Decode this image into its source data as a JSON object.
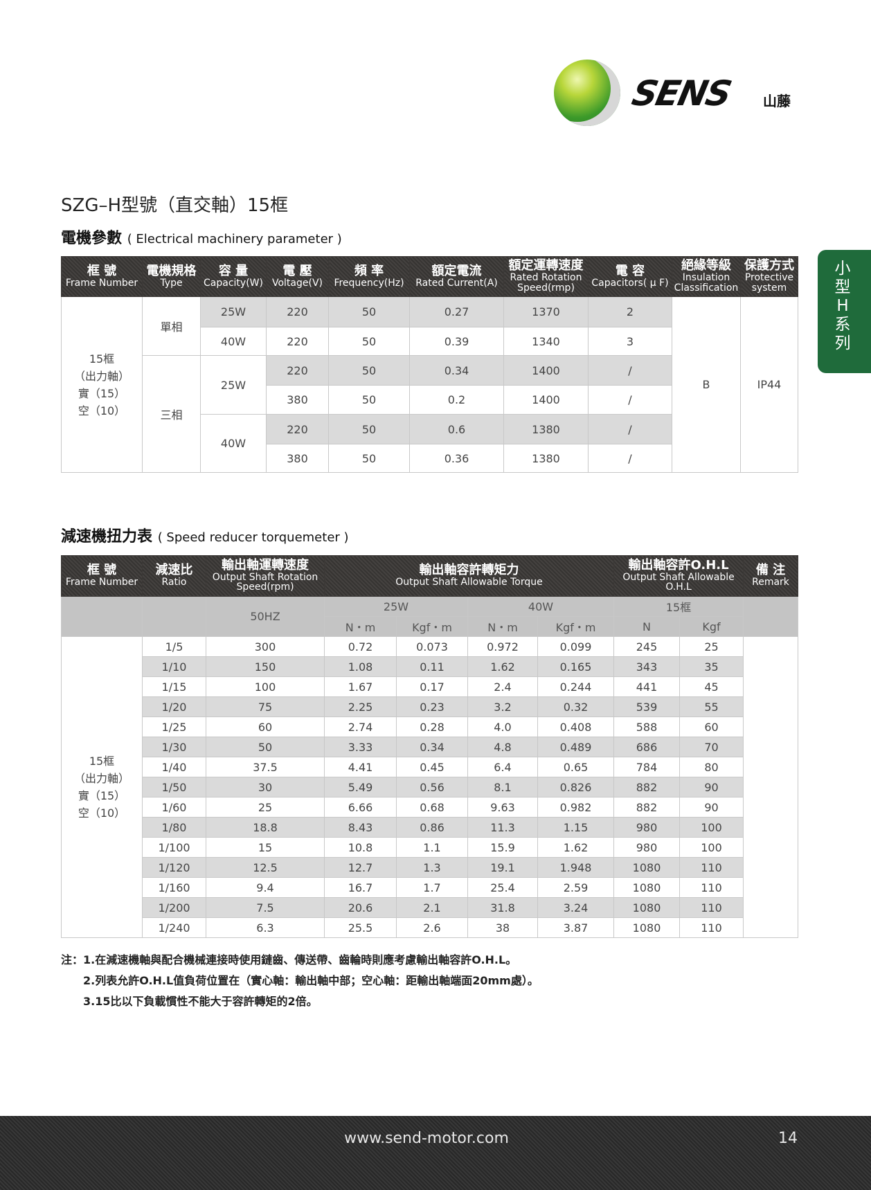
{
  "logo": {
    "brand": "SENS",
    "brand_cn": "山藤"
  },
  "title": "SZG–H型號（直交軸）15框",
  "side_tab": "小型H系列",
  "section1": {
    "title_cn": "電機參數",
    "title_en": "( Electrical machinery parameter )"
  },
  "table1": {
    "headers": [
      {
        "cn": "框 號",
        "en": "Frame Number"
      },
      {
        "cn": "電機規格",
        "en": "Type"
      },
      {
        "cn": "容 量",
        "en": "Capacity(W)"
      },
      {
        "cn": "電 壓",
        "en": "Voltage(V)"
      },
      {
        "cn": "頻 率",
        "en": "Frequency(Hz)"
      },
      {
        "cn": "額定電流",
        "en": "Rated Current(A)"
      },
      {
        "cn": "額定運轉速度",
        "en": "Rated Rotation Speed(rmp)"
      },
      {
        "cn": "電 容",
        "en": "Capacitors( μ F)"
      },
      {
        "cn": "絕緣等級",
        "en": "Insulation Classification"
      },
      {
        "cn": "保護方式",
        "en": "Protective system"
      }
    ],
    "frame": [
      "15框",
      "（出力軸）",
      "實（15）",
      "空（10）"
    ],
    "type_single": "單相",
    "type_three": "三相",
    "insulation": "B",
    "protection": "IP44",
    "rows": [
      {
        "capacity": "25W",
        "voltage": "220",
        "freq": "50",
        "current": "0.27",
        "speed": "1370",
        "cap": "2"
      },
      {
        "capacity": "40W",
        "voltage": "220",
        "freq": "50",
        "current": "0.39",
        "speed": "1340",
        "cap": "3"
      },
      {
        "capacity": "25W",
        "voltage": "220",
        "freq": "50",
        "current": "0.34",
        "speed": "1400",
        "cap": "/"
      },
      {
        "capacity": "",
        "voltage": "380",
        "freq": "50",
        "current": "0.2",
        "speed": "1400",
        "cap": "/"
      },
      {
        "capacity": "40W",
        "voltage": "220",
        "freq": "50",
        "current": "0.6",
        "speed": "1380",
        "cap": "/"
      },
      {
        "capacity": "",
        "voltage": "380",
        "freq": "50",
        "current": "0.36",
        "speed": "1380",
        "cap": "/"
      }
    ]
  },
  "section2": {
    "title_cn": "減速機扭力表",
    "title_en": "( Speed reducer torquemeter )"
  },
  "table2": {
    "headers": {
      "frame": {
        "cn": "框 號",
        "en": "Frame Number"
      },
      "ratio": {
        "cn": "減速比",
        "en": "Ratio"
      },
      "speed": {
        "cn": "輸出軸運轉速度",
        "en": "Output Shaft Rotation Speed(rpm)"
      },
      "torque": {
        "cn": "輸出軸容許轉矩力",
        "en": "Output Shaft Allowable Torque"
      },
      "ohl": {
        "cn": "輸出軸容許O.H.L",
        "en": "Output Shaft Allowable O.H.L"
      },
      "remark": {
        "cn": "備 注",
        "en": "Remark"
      }
    },
    "sub": {
      "hz": "50HZ",
      "w25": "25W",
      "w40": "40W",
      "frame15": "15框",
      "nm1": "N・m",
      "kgfm1": "Kgf・m",
      "nm2": "N・m",
      "kgfm2": "Kgf・m",
      "n": "N",
      "kgf": "Kgf"
    },
    "frame": [
      "15框",
      "（出力軸）",
      "實（15）",
      "空（10）"
    ],
    "rows": [
      [
        "1/5",
        "300",
        "0.72",
        "0.073",
        "0.972",
        "0.099",
        "245",
        "25"
      ],
      [
        "1/10",
        "150",
        "1.08",
        "0.11",
        "1.62",
        "0.165",
        "343",
        "35"
      ],
      [
        "1/15",
        "100",
        "1.67",
        "0.17",
        "2.4",
        "0.244",
        "441",
        "45"
      ],
      [
        "1/20",
        "75",
        "2.25",
        "0.23",
        "3.2",
        "0.32",
        "539",
        "55"
      ],
      [
        "1/25",
        "60",
        "2.74",
        "0.28",
        "4.0",
        "0.408",
        "588",
        "60"
      ],
      [
        "1/30",
        "50",
        "3.33",
        "0.34",
        "4.8",
        "0.489",
        "686",
        "70"
      ],
      [
        "1/40",
        "37.5",
        "4.41",
        "0.45",
        "6.4",
        "0.65",
        "784",
        "80"
      ],
      [
        "1/50",
        "30",
        "5.49",
        "0.56",
        "8.1",
        "0.826",
        "882",
        "90"
      ],
      [
        "1/60",
        "25",
        "6.66",
        "0.68",
        "9.63",
        "0.982",
        "882",
        "90"
      ],
      [
        "1/80",
        "18.8",
        "8.43",
        "0.86",
        "11.3",
        "1.15",
        "980",
        "100"
      ],
      [
        "1/100",
        "15",
        "10.8",
        "1.1",
        "15.9",
        "1.62",
        "980",
        "100"
      ],
      [
        "1/120",
        "12.5",
        "12.7",
        "1.3",
        "19.1",
        "1.948",
        "1080",
        "110"
      ],
      [
        "1/160",
        "9.4",
        "16.7",
        "1.7",
        "25.4",
        "2.59",
        "1080",
        "110"
      ],
      [
        "1/200",
        "7.5",
        "20.6",
        "2.1",
        "31.8",
        "3.24",
        "1080",
        "110"
      ],
      [
        "1/240",
        "6.3",
        "25.5",
        "2.6",
        "38",
        "3.87",
        "1080",
        "110"
      ]
    ]
  },
  "notes": [
    "注：1.在減速機軸與配合機械連接時使用鏈齒、傳送帶、齒輪時則應考慮輸出軸容許O.H.L。",
    "2.列表允許O.H.L值負荷位置在（實心軸：輸出軸中部；空心軸：距輸出軸端面20mm處）。",
    "3.15比以下負載慣性不能大于容許轉矩的2倍。"
  ],
  "footer": {
    "url": "www.send-motor.com",
    "page": "14"
  }
}
